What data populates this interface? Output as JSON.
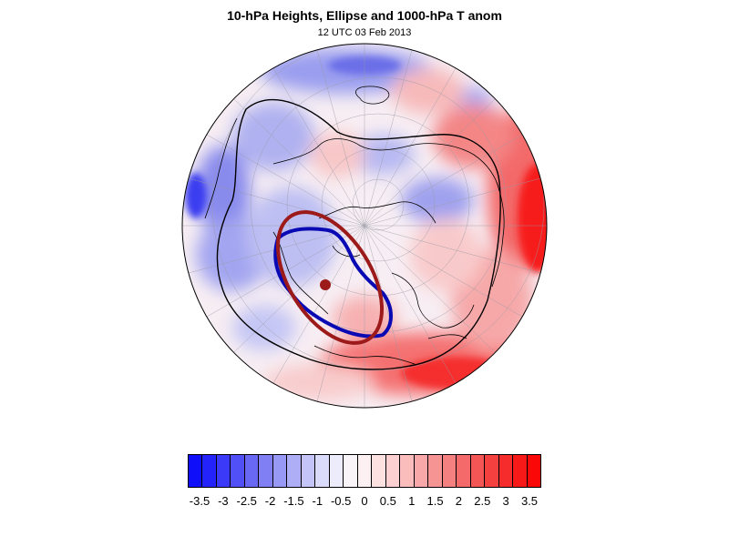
{
  "title": "10-hPa Heights, Ellipse and 1000-hPa T anom",
  "subtitle": "12 UTC 03 Feb 2013",
  "colors": {
    "ellipse_fit": "#9c1a1a",
    "height_contour": "#0a0ab4",
    "coastline": "#000000"
  },
  "colorbar": {
    "labels": [
      "-3.5",
      "-3",
      "-2.5",
      "-2",
      "-1.5",
      "-1",
      "-0.5",
      "0",
      "0.5",
      "1",
      "1.5",
      "2",
      "2.5",
      "3",
      "3.5"
    ],
    "colors": [
      "#0f0ffa",
      "#2323fa",
      "#3a3af8",
      "#5050f6",
      "#6868f5",
      "#8080f4",
      "#9898f5",
      "#aeaef6",
      "#c4c4f8",
      "#dadafb",
      "#ececfc",
      "#f8f4f8",
      "#fcf0f0",
      "#fde0e0",
      "#fcd0d0",
      "#fbbcbc",
      "#f8a8a8",
      "#f69494",
      "#f48080",
      "#f46a6a",
      "#f45656",
      "#f54040",
      "#f62c2c",
      "#f71818",
      "#fa0808"
    ]
  }
}
